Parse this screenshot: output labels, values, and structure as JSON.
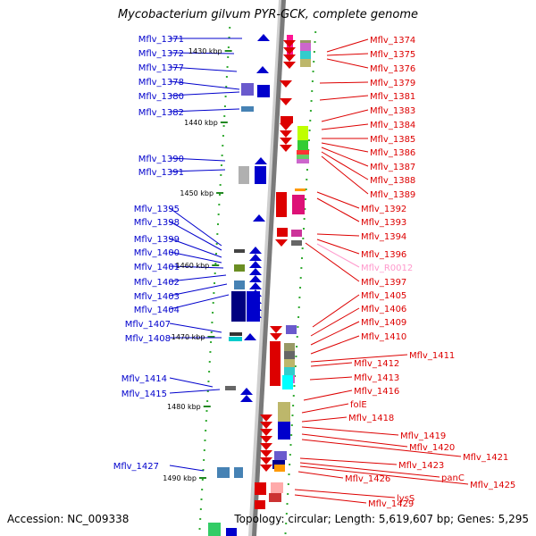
{
  "title": "Mycobacterium gilvum PYR-GCK, complete genome",
  "footer": {
    "accession": "Accession: NC_009338",
    "topology": "Topology: circular; Length: 5,619,607 bp; Genes: 5,295"
  },
  "colors": {
    "left": "#0000cc",
    "right": "#dd0000",
    "pseudo": "#ff99cc"
  },
  "ruler": [
    "1430 kbp",
    "1440 kbp",
    "1450 kbp",
    "1460 kbp",
    "1470 kbp",
    "1480 kbp",
    "1490 kbp"
  ],
  "left_labels": [
    "Mflv_1371",
    "Mflv_1372",
    "Mflv_1377",
    "Mflv_1378",
    "Mflv_1380",
    "Mflv_1382",
    "Mflv_1390",
    "Mflv_1391",
    "Mflv_1395",
    "Mflv_1398",
    "Mflv_1399",
    "Mflv_1400",
    "Mflv_1401",
    "Mflv_1402",
    "Mflv_1403",
    "Mflv_1404",
    "Mflv_1407",
    "Mflv_1408",
    "Mflv_1414",
    "Mflv_1415",
    "Mflv_1427"
  ],
  "right_labels": [
    "Mflv_1374",
    "Mflv_1375",
    "Mflv_1376",
    "Mflv_1379",
    "Mflv_1381",
    "Mflv_1383",
    "Mflv_1384",
    "Mflv_1385",
    "Mflv_1386",
    "Mflv_1387",
    "Mflv_1388",
    "Mflv_1389",
    "Mflv_1392",
    "Mflv_1393",
    "Mflv_1394",
    "Mflv_1396",
    "Mflv_R0012",
    "Mflv_1397",
    "Mflv_1405",
    "Mflv_1406",
    "Mflv_1409",
    "Mflv_1410",
    "Mflv_1411",
    "Mflv_1412",
    "Mflv_1413",
    "Mflv_1416",
    "folE",
    "Mflv_1418",
    "Mflv_1419",
    "Mflv_1420",
    "Mflv_1421",
    "Mflv_1423",
    "panC",
    "Mflv_1425",
    "Mflv_1426",
    "lysS",
    "Mflv_1429"
  ]
}
